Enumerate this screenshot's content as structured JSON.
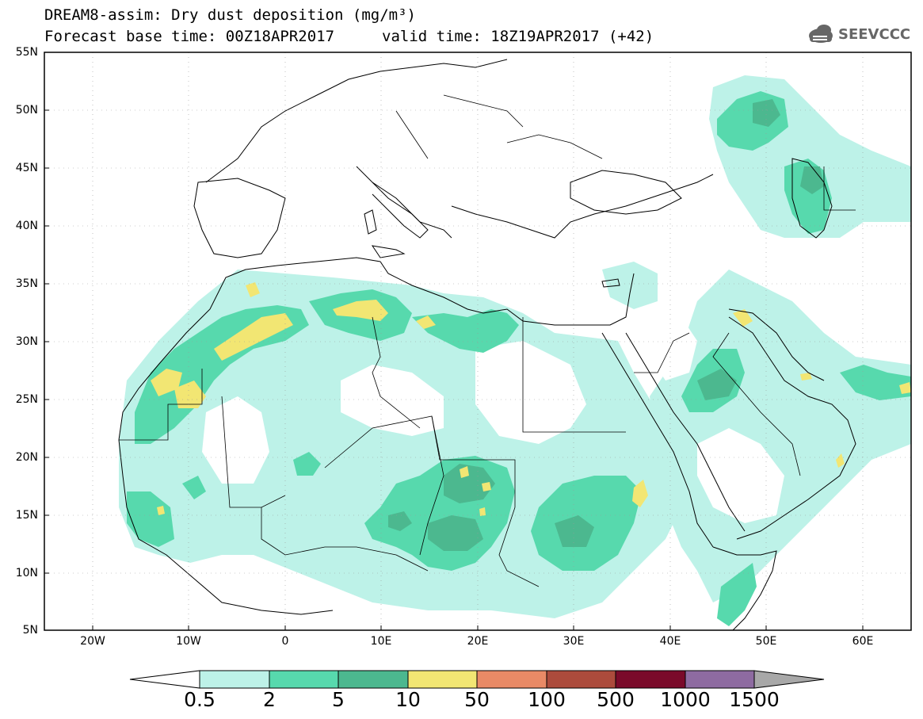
{
  "header": {
    "title_line1": "DREAM8-assim: Dry dust deposition (mg/m³)",
    "title_line2": "Forecast base time: 00Z18APR2017",
    "valid_time": "valid time: 18Z19APR2017 (+42)"
  },
  "logo": {
    "icon": "cloud-icon",
    "text": "SEEVCCC"
  },
  "map": {
    "lat_labels": [
      "55N",
      "50N",
      "45N",
      "40N",
      "35N",
      "30N",
      "25N",
      "20N",
      "15N",
      "10N",
      "5N"
    ],
    "lon_labels": [
      "20W",
      "10W",
      "0",
      "10E",
      "20E",
      "30E",
      "40E",
      "50E",
      "60E"
    ],
    "extent": {
      "lon_min": -25,
      "lon_max": 65,
      "lat_min": 5,
      "lat_max": 55
    },
    "colors": {
      "level1": "#bdf2e8",
      "level2": "#57d9ad",
      "level3": "#4cb88f",
      "level4": "#f2e673",
      "ocean": "#ffffff"
    }
  },
  "colorbar": {
    "labels": [
      "0.5",
      "2",
      "5",
      "10",
      "50",
      "100",
      "500",
      "1000",
      "1500"
    ],
    "colors": [
      "#bdf2e8",
      "#57d9ad",
      "#4cb88f",
      "#f2e673",
      "#e98a66",
      "#ac4b3c",
      "#7a0a2a",
      "#8e6ba1",
      "#a8a8a8"
    ],
    "under_color": "#ffffff",
    "over_color": "#a8a8a8"
  }
}
